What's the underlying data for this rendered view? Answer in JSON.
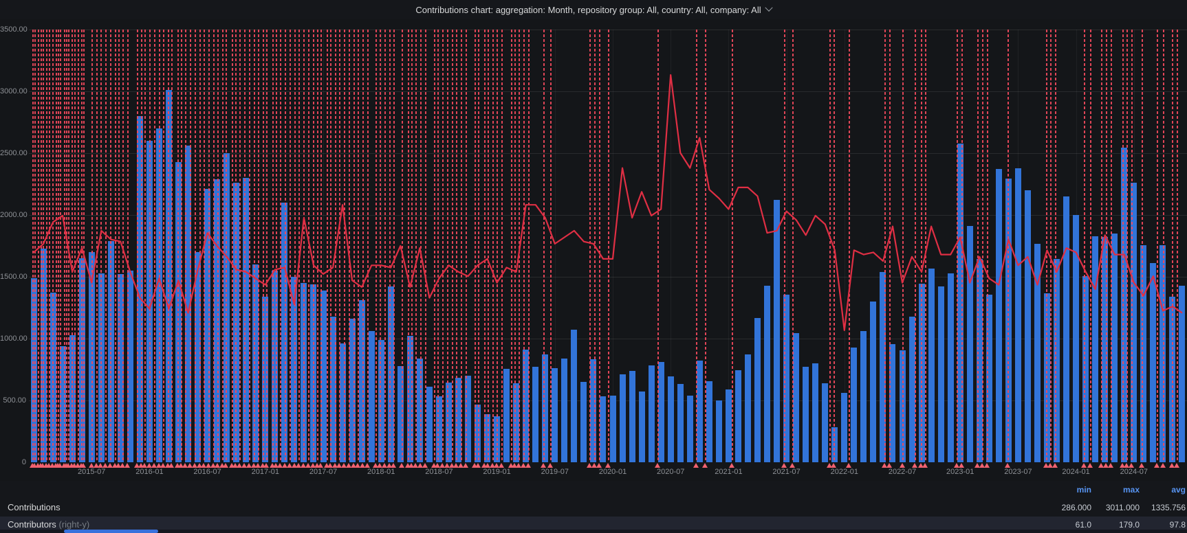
{
  "title": {
    "text": "Contributions chart: aggregation: Month, repository group: All, country: All, company: All"
  },
  "colors": {
    "background": "#141619",
    "bar": "#3274D9",
    "line": "#E02F44",
    "annotation": "#F2495C",
    "header_accent": "#5794F2",
    "axis_text": "#8e9196",
    "text": "#d8d9da"
  },
  "y_axis": {
    "ticks": [
      "3500.00",
      "3000.00",
      "2500.00",
      "2000.00",
      "1500.00",
      "1000.00",
      "500.00",
      "0"
    ],
    "min": 0,
    "max": 3500
  },
  "x_axis": {
    "labels": [
      "2015-07",
      "2016-01",
      "2016-07",
      "2017-01",
      "2017-07",
      "2018-01",
      "2018-07",
      "2019-01",
      "2019-07",
      "2020-01",
      "2020-07",
      "2021-01",
      "2021-07",
      "2022-01",
      "2022-07",
      "2023-01",
      "2023-07",
      "2024-01",
      "2024-07"
    ]
  },
  "chart_data": {
    "type": "bar",
    "title": "Contributions chart: aggregation: Month, repository group: All, country: All, company: All",
    "aggregation": "Month",
    "x_months": {
      "start": "2015-01",
      "count": 120
    },
    "ylim_left": [
      0,
      3500
    ],
    "ylim_right": [
      0,
      200
    ],
    "right_to_left_factor": 17.5,
    "grid": true,
    "legend_position": "bottom-table",
    "series": [
      {
        "name": "Contributions",
        "type": "bar",
        "axis": "left",
        "color": "#3274D9",
        "min": 286.0,
        "max": 3011.0,
        "avg": 1335.756,
        "values": [
          1490,
          1730,
          1370,
          940,
          1030,
          1650,
          1700,
          1530,
          1790,
          1520,
          1550,
          2800,
          2600,
          2700,
          3011,
          2430,
          2560,
          1700,
          2210,
          2290,
          2500,
          2260,
          2300,
          1600,
          1340,
          1550,
          2100,
          1500,
          1450,
          1440,
          1390,
          1180,
          960,
          1160,
          1310,
          1060,
          990,
          1420,
          780,
          1020,
          840,
          610,
          535,
          645,
          685,
          700,
          465,
          390,
          370,
          755,
          640,
          910,
          770,
          875,
          760,
          840,
          1070,
          650,
          835,
          535,
          540,
          710,
          740,
          570,
          785,
          810,
          695,
          635,
          540,
          825,
          655,
          500,
          590,
          745,
          870,
          1165,
          1430,
          2120,
          1355,
          1045,
          770,
          800,
          640,
          286,
          560,
          930,
          1060,
          1300,
          1540,
          955,
          905,
          1180,
          1445,
          1565,
          1420,
          1530,
          2580,
          1910,
          1645,
          1355,
          2375,
          2295,
          2380,
          2200,
          1765,
          1365,
          1645,
          2150,
          2000,
          1505,
          1830,
          1825,
          1850,
          2545,
          2260,
          1755,
          1610,
          1755,
          1340,
          1430
        ]
      },
      {
        "name": "Contributors",
        "type": "line",
        "axis": "right",
        "color": "#E02F44",
        "min": 61.0,
        "max": 179.0,
        "avg": 97.8,
        "values": [
          97,
          101,
          111,
          114,
          88,
          99,
          83,
          107,
          103,
          102,
          88,
          76,
          71,
          85,
          71,
          84,
          69,
          89,
          106,
          100,
          95,
          89,
          88,
          85,
          82,
          89,
          90,
          73,
          113,
          91,
          87,
          90,
          119,
          84,
          81,
          91,
          91,
          90,
          100,
          81,
          99,
          76,
          85,
          91,
          88,
          86,
          91,
          94,
          83,
          90,
          88,
          119,
          119,
          113,
          101,
          104,
          107,
          102,
          101,
          94,
          94,
          136,
          113,
          125,
          114,
          117,
          179,
          143,
          136,
          150,
          126,
          122,
          117,
          127,
          127,
          123,
          106,
          107,
          116,
          112,
          105,
          114,
          110,
          98,
          61,
          98,
          96,
          97,
          93,
          109,
          83,
          95,
          88,
          109,
          96,
          96,
          104,
          83,
          95,
          85,
          82,
          103,
          91,
          95,
          82,
          98,
          88,
          99,
          97,
          88,
          80,
          105,
          96,
          96,
          83,
          77,
          86,
          70,
          72,
          69
        ]
      }
    ],
    "annotations_pct": [
      0.3,
      0.5,
      0.8,
      1.0,
      1.2,
      1.5,
      1.7,
      2.0,
      2.3,
      2.5,
      2.7,
      3.0,
      3.2,
      3.4,
      3.7,
      3.9,
      4.2,
      4.5,
      4.7,
      5.4,
      5.8,
      6.2,
      6.6,
      7.0,
      7.4,
      7.7,
      8.1,
      8.5,
      9.3,
      9.7,
      10.0,
      10.4,
      10.8,
      11.2,
      11.6,
      12.0,
      12.3,
      12.8,
      13.1,
      13.5,
      13.9,
      14.3,
      14.7,
      15.1,
      15.5,
      15.9,
      16.3,
      16.7,
      17.0,
      17.5,
      17.8,
      18.2,
      18.6,
      19.0,
      19.4,
      19.8,
      20.2,
      20.5,
      21.0,
      21.3,
      21.7,
      22.1,
      22.5,
      22.9,
      23.3,
      23.7,
      24.1,
      24.5,
      24.9,
      25.2,
      25.7,
      26.0,
      26.4,
      26.8,
      27.2,
      27.6,
      28.0,
      28.4,
      28.8,
      29.2,
      29.9,
      30.3,
      30.7,
      31.1,
      31.5,
      32.2,
      32.7,
      33.0,
      33.4,
      33.8,
      34.2,
      35.0,
      35.3,
      35.7,
      36.1,
      36.5,
      36.9,
      37.3,
      37.7,
      38.5,
      38.8,
      39.3,
      39.6,
      40.0,
      40.4,
      40.8,
      41.6,
      41.9,
      42.3,
      42.7,
      43.1,
      44.4,
      45.0,
      48.4,
      48.8,
      49.2,
      50.0,
      54.3,
      57.6,
      58.4,
      60.7,
      65.2,
      65.9,
      69.1,
      69.5,
      70.8,
      73.9,
      74.3,
      75.4,
      76.5,
      77.0,
      77.4,
      80.1,
      80.5,
      81.9,
      82.3,
      82.7,
      84.5,
      87.8,
      88.2,
      88.6,
      91.1,
      91.6,
      92.6,
      93.0,
      93.4,
      94.4,
      94.8,
      95.2,
      96.1,
      97.4,
      97.9,
      98.7,
      99.1
    ]
  },
  "legend": {
    "header": {
      "min": "min",
      "max": "max",
      "avg": "avg"
    },
    "rows": [
      {
        "name": "Contributions",
        "suffix": "",
        "min": "286.000",
        "max": "3011.000",
        "avg": "1335.756"
      },
      {
        "name": "Contributors",
        "suffix": "(right-y)",
        "min": "61.0",
        "max": "179.0",
        "avg": "97.8"
      }
    ]
  }
}
